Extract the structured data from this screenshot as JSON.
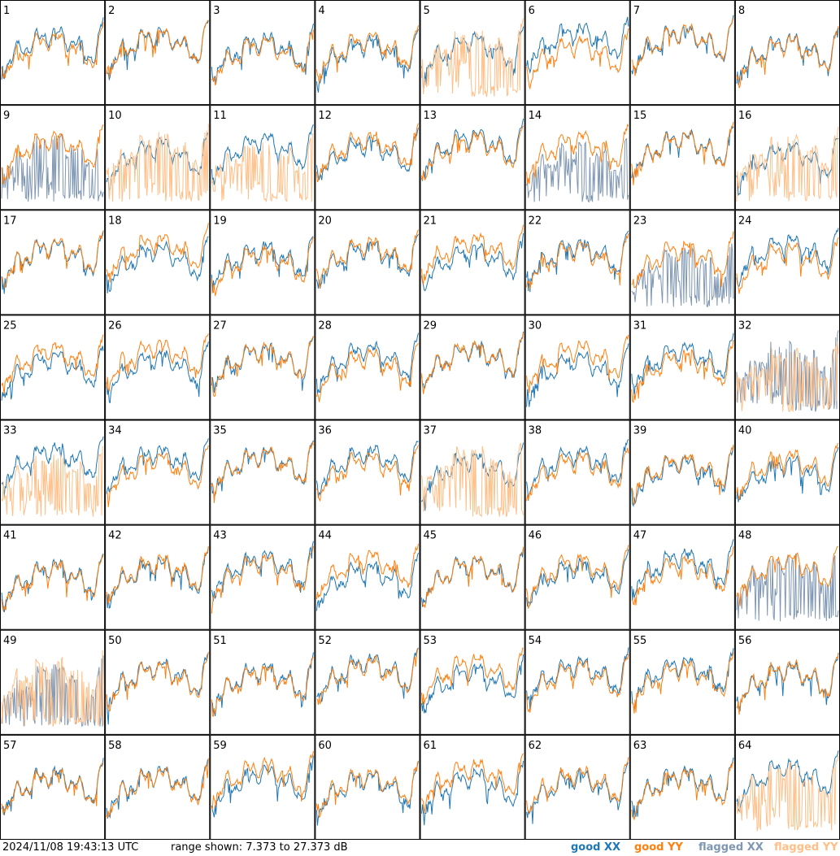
{
  "footer": {
    "timestamp": "2024/11/08 19:43:13 UTC",
    "range": "range shown: 7.373 to 27.373 dB"
  },
  "legend": {
    "good_label": "good",
    "flagged_label": "flagged",
    "xx": "XX",
    "yy": "YY"
  },
  "colors": {
    "good_xx": "#1f77b4",
    "good_yy": "#ff7f0e",
    "flagged_xx": "#7f97b2",
    "flagged_yy": "#ffbf87",
    "background": "#ffffff",
    "border": "#000000"
  },
  "chart_data": {
    "type": "line",
    "layout": "8x8 small multiples",
    "y_unit": "dB",
    "ylim": [
      7.373,
      27.373
    ],
    "series_names": [
      "good XX",
      "good YY",
      "flagged XX",
      "flagged YY"
    ],
    "panels": [
      {
        "label": "1",
        "xx": "good",
        "yy": "good"
      },
      {
        "label": "2",
        "xx": "good",
        "yy": "good"
      },
      {
        "label": "3",
        "xx": "good",
        "yy": "good"
      },
      {
        "label": "4",
        "xx": "good",
        "yy": "good"
      },
      {
        "label": "5",
        "xx": "good",
        "yy": "flagged"
      },
      {
        "label": "6",
        "xx": "good",
        "yy": "good"
      },
      {
        "label": "7",
        "xx": "good",
        "yy": "good"
      },
      {
        "label": "8",
        "xx": "good",
        "yy": "good"
      },
      {
        "label": "9",
        "xx": "flagged",
        "yy": "good"
      },
      {
        "label": "10",
        "xx": "good",
        "yy": "flagged"
      },
      {
        "label": "11",
        "xx": "good",
        "yy": "flagged"
      },
      {
        "label": "12",
        "xx": "good",
        "yy": "good"
      },
      {
        "label": "13",
        "xx": "good",
        "yy": "good"
      },
      {
        "label": "14",
        "xx": "flagged",
        "yy": "good"
      },
      {
        "label": "15",
        "xx": "good",
        "yy": "good"
      },
      {
        "label": "16",
        "xx": "good",
        "yy": "flagged"
      },
      {
        "label": "17",
        "xx": "good",
        "yy": "good"
      },
      {
        "label": "18",
        "xx": "good",
        "yy": "good"
      },
      {
        "label": "19",
        "xx": "good",
        "yy": "good"
      },
      {
        "label": "20",
        "xx": "good",
        "yy": "good"
      },
      {
        "label": "21",
        "xx": "good",
        "yy": "good"
      },
      {
        "label": "22",
        "xx": "good",
        "yy": "good"
      },
      {
        "label": "23",
        "xx": "flagged",
        "yy": "good"
      },
      {
        "label": "24",
        "xx": "good",
        "yy": "good"
      },
      {
        "label": "25",
        "xx": "good",
        "yy": "good"
      },
      {
        "label": "26",
        "xx": "good",
        "yy": "good"
      },
      {
        "label": "27",
        "xx": "good",
        "yy": "good"
      },
      {
        "label": "28",
        "xx": "good",
        "yy": "good"
      },
      {
        "label": "29",
        "xx": "good",
        "yy": "good"
      },
      {
        "label": "30",
        "xx": "good",
        "yy": "good"
      },
      {
        "label": "31",
        "xx": "good",
        "yy": "good"
      },
      {
        "label": "32",
        "xx": "flagged",
        "yy": "flagged"
      },
      {
        "label": "33",
        "xx": "good",
        "yy": "flagged"
      },
      {
        "label": "34",
        "xx": "good",
        "yy": "good"
      },
      {
        "label": "35",
        "xx": "good",
        "yy": "good"
      },
      {
        "label": "36",
        "xx": "good",
        "yy": "good"
      },
      {
        "label": "37",
        "xx": "good",
        "yy": "flagged"
      },
      {
        "label": "38",
        "xx": "good",
        "yy": "good"
      },
      {
        "label": "39",
        "xx": "good",
        "yy": "good"
      },
      {
        "label": "40",
        "xx": "good",
        "yy": "good"
      },
      {
        "label": "41",
        "xx": "good",
        "yy": "good"
      },
      {
        "label": "42",
        "xx": "good",
        "yy": "good"
      },
      {
        "label": "43",
        "xx": "good",
        "yy": "good"
      },
      {
        "label": "44",
        "xx": "good",
        "yy": "good"
      },
      {
        "label": "45",
        "xx": "good",
        "yy": "good"
      },
      {
        "label": "46",
        "xx": "good",
        "yy": "good"
      },
      {
        "label": "47",
        "xx": "good",
        "yy": "good"
      },
      {
        "label": "48",
        "xx": "flagged",
        "yy": "good"
      },
      {
        "label": "49",
        "xx": "flagged",
        "yy": "flagged"
      },
      {
        "label": "50",
        "xx": "good",
        "yy": "good"
      },
      {
        "label": "51",
        "xx": "good",
        "yy": "good"
      },
      {
        "label": "52",
        "xx": "good",
        "yy": "good"
      },
      {
        "label": "53",
        "xx": "good",
        "yy": "good"
      },
      {
        "label": "54",
        "xx": "good",
        "yy": "good"
      },
      {
        "label": "55",
        "xx": "good",
        "yy": "good"
      },
      {
        "label": "56",
        "xx": "good",
        "yy": "good"
      },
      {
        "label": "57",
        "xx": "good",
        "yy": "good"
      },
      {
        "label": "58",
        "xx": "good",
        "yy": "good"
      },
      {
        "label": "59",
        "xx": "good",
        "yy": "good"
      },
      {
        "label": "60",
        "xx": "good",
        "yy": "good"
      },
      {
        "label": "61",
        "xx": "good",
        "yy": "good"
      },
      {
        "label": "62",
        "xx": "good",
        "yy": "good"
      },
      {
        "label": "63",
        "xx": "good",
        "yy": "good"
      },
      {
        "label": "64",
        "xx": "good",
        "yy": "flagged"
      }
    ]
  }
}
